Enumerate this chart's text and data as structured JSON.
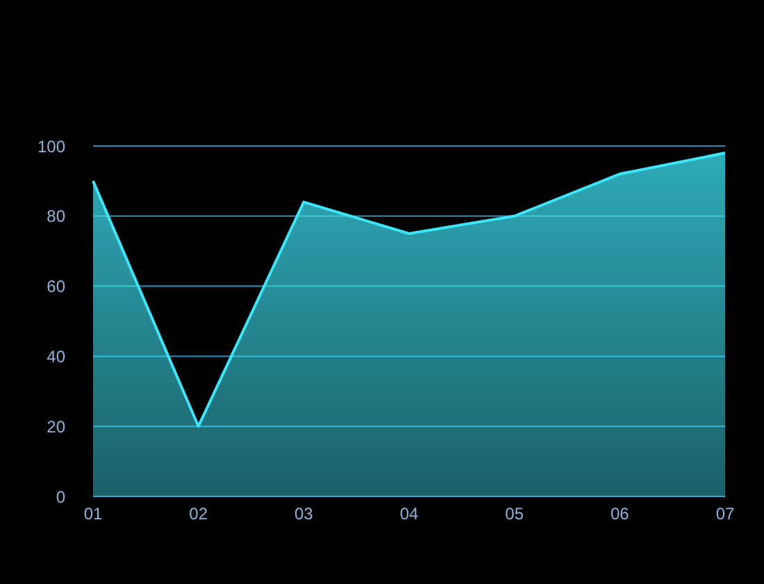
{
  "chart_data": {
    "type": "area",
    "categories": [
      "01",
      "02",
      "03",
      "04",
      "05",
      "06",
      "07"
    ],
    "series": [
      {
        "color": "#3ee4f7",
        "values": [
          90,
          20,
          84,
          75,
          80,
          92,
          98
        ]
      }
    ],
    "ylim": [
      0,
      100
    ],
    "yticks": [
      0,
      20,
      40,
      60,
      80,
      100
    ],
    "grid": "y",
    "marker": "none",
    "line_style": "solid"
  }
}
